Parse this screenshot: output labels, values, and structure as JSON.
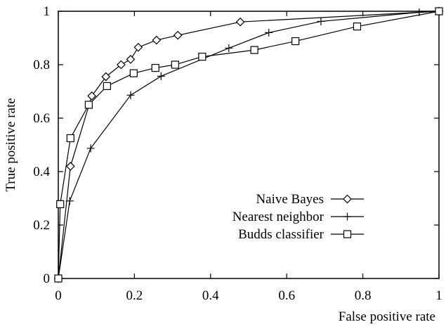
{
  "chart_data": {
    "type": "line",
    "title": "",
    "xlabel": "False positive rate",
    "ylabel": "True positive rate",
    "xlim": [
      0,
      1
    ],
    "ylim": [
      0,
      1
    ],
    "x_ticks": [
      "0",
      "0.2",
      "0.4",
      "0.6",
      "0.8",
      "1"
    ],
    "y_ticks": [
      "0",
      "0.2",
      "0.4",
      "0.6",
      "0.8",
      "1"
    ],
    "x_tick_values": [
      0,
      0.2,
      0.4,
      0.6,
      0.8,
      1
    ],
    "y_tick_values": [
      0,
      0.2,
      0.4,
      0.6,
      0.8,
      1
    ],
    "grid": false,
    "legend_position": "bottom-right",
    "series": [
      {
        "name": "Naive Bayes",
        "marker": "diamond",
        "points": [
          [
            0,
            0
          ],
          [
            0.032,
            0.42
          ],
          [
            0.088,
            0.683
          ],
          [
            0.125,
            0.755
          ],
          [
            0.165,
            0.8
          ],
          [
            0.19,
            0.82
          ],
          [
            0.21,
            0.865
          ],
          [
            0.258,
            0.892
          ],
          [
            0.314,
            0.91
          ],
          [
            0.478,
            0.96
          ],
          [
            1,
            1
          ]
        ]
      },
      {
        "name": "Nearest neighbor",
        "marker": "plus",
        "points": [
          [
            0,
            0
          ],
          [
            0.03,
            0.29
          ],
          [
            0.085,
            0.487
          ],
          [
            0.19,
            0.686
          ],
          [
            0.27,
            0.757
          ],
          [
            0.448,
            0.862
          ],
          [
            0.553,
            0.92
          ],
          [
            0.69,
            0.962
          ],
          [
            0.948,
            0.996
          ],
          [
            1,
            1
          ]
        ]
      },
      {
        "name": "Budds classifier",
        "marker": "square",
        "points": [
          [
            0,
            0
          ],
          [
            0.005,
            0.278
          ],
          [
            0.032,
            0.525
          ],
          [
            0.08,
            0.65
          ],
          [
            0.128,
            0.72
          ],
          [
            0.198,
            0.768
          ],
          [
            0.255,
            0.788
          ],
          [
            0.307,
            0.8
          ],
          [
            0.378,
            0.83
          ],
          [
            0.515,
            0.855
          ],
          [
            0.623,
            0.888
          ],
          [
            0.785,
            0.943
          ],
          [
            1,
            1
          ]
        ]
      }
    ]
  }
}
